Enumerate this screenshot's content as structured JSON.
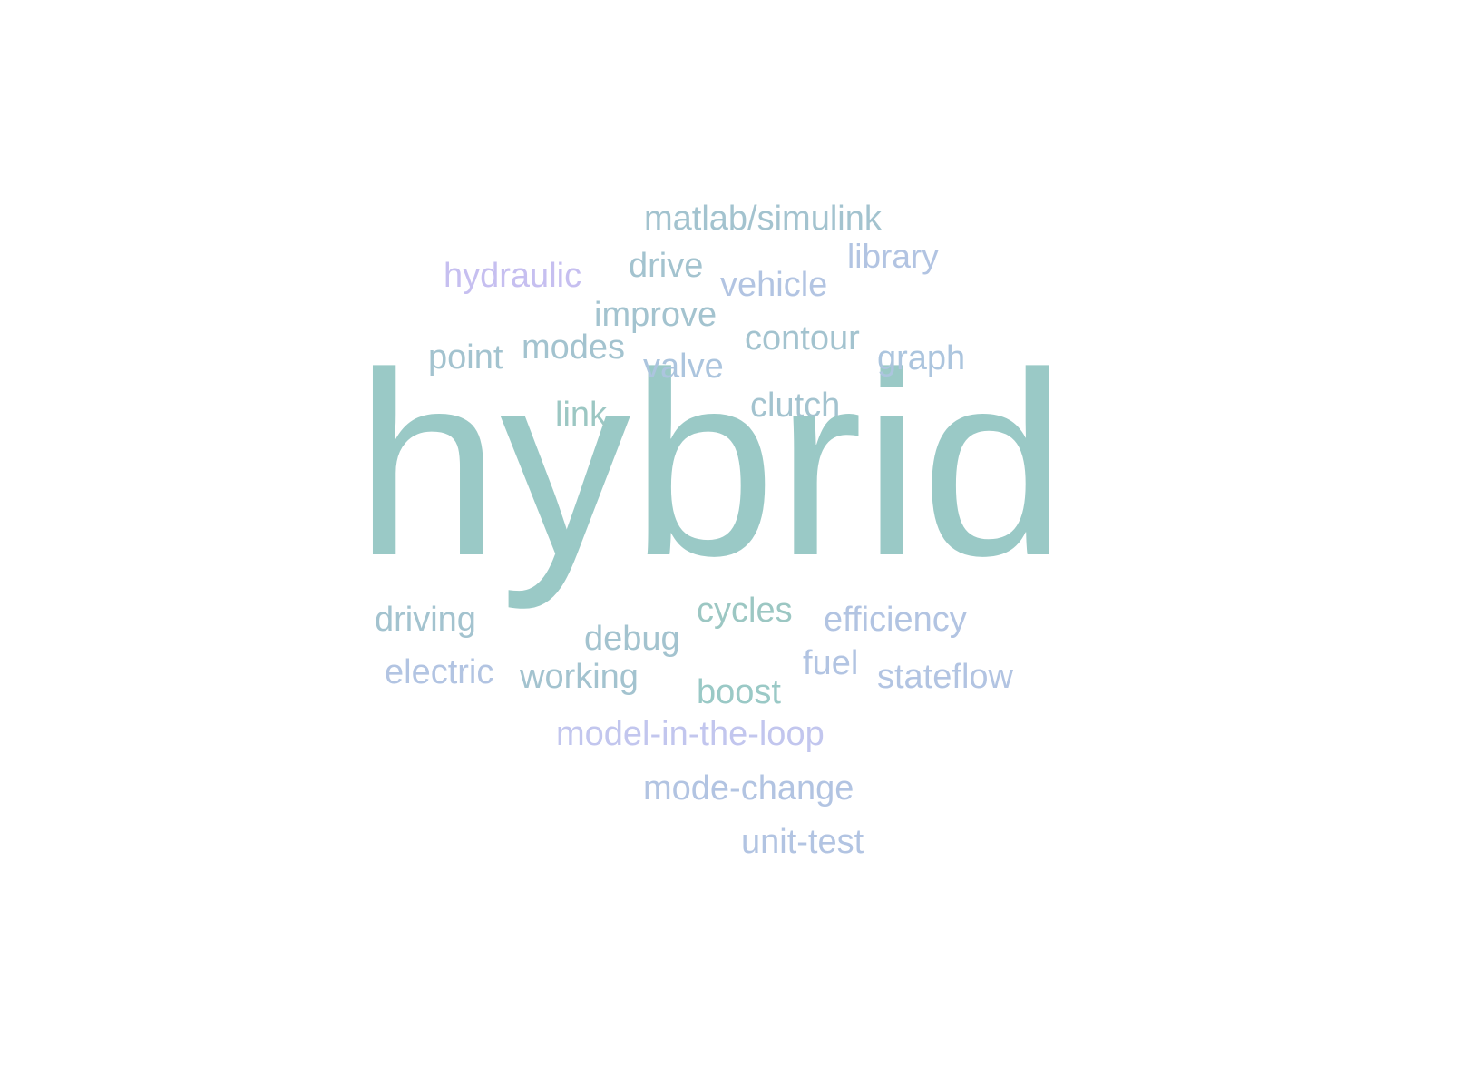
{
  "word_cloud": {
    "background": "#ffffff",
    "palette": [
      "#9ac9c6",
      "#a3c3cf",
      "#acc5de",
      "#b2c4e2",
      "#c6bff0",
      "#c2c6ee"
    ],
    "words": {
      "hybrid": "hybrid",
      "matlab_simulink": "matlab/simulink",
      "library": "library",
      "hydraulic": "hydraulic",
      "drive": "drive",
      "vehicle": "vehicle",
      "improve": "improve",
      "contour": "contour",
      "point": "point",
      "modes": "modes",
      "valve": "valve",
      "graph": "graph",
      "link": "link",
      "clutch": "clutch",
      "driving": "driving",
      "cycles": "cycles",
      "efficiency": "efficiency",
      "debug": "debug",
      "electric": "electric",
      "working": "working",
      "fuel": "fuel",
      "stateflow": "stateflow",
      "boost": "boost",
      "model_in_the_loop": "model-in-the-loop",
      "mode_change": "mode-change",
      "unit_test": "unit-test"
    }
  }
}
